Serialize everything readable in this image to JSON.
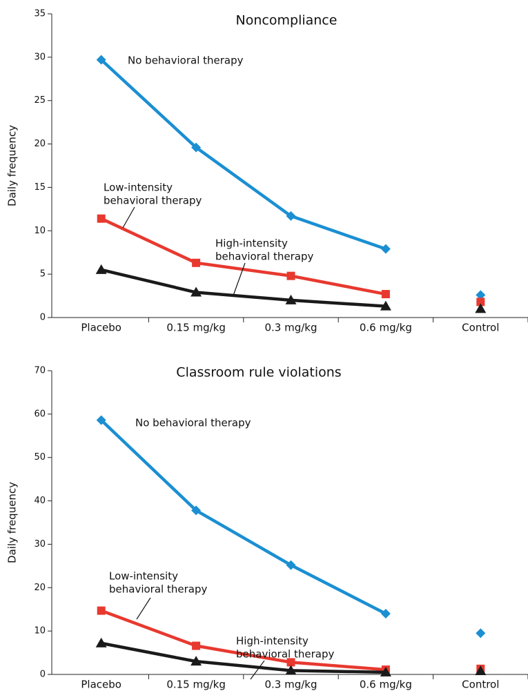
{
  "chart_data": [
    {
      "type": "line",
      "title": "Noncompliance",
      "y_label": "Daily frequency",
      "categories": [
        "Placebo",
        "0.15 mg/kg",
        "0.3 mg/kg",
        "0.6 mg/kg",
        "Control"
      ],
      "unconnected": [
        4
      ],
      "series": [
        {
          "name": "No behavioral therapy",
          "color": "#1b8fd2",
          "marker": "diamond",
          "values": [
            29.7,
            19.6,
            11.7,
            7.9,
            2.6
          ]
        },
        {
          "name": "Low-intensity behavioral therapy",
          "color": "#e8392f",
          "marker": "square",
          "values": [
            11.4,
            6.3,
            4.8,
            2.7,
            1.8
          ]
        },
        {
          "name": "High-intensity behavioral therapy",
          "color": "#1a1a1a",
          "marker": "triangle",
          "values": [
            5.5,
            2.9,
            2.0,
            1.3,
            1.0
          ]
        }
      ],
      "annotations": [
        [
          "No behavioral therapy"
        ],
        [
          "Low-intensity",
          "behavioral therapy"
        ],
        [
          "High-intensity",
          "behavioral therapy"
        ]
      ],
      "ylim": [
        0,
        35
      ],
      "yticks": [
        0,
        5,
        10,
        15,
        20,
        25,
        30,
        35
      ]
    },
    {
      "type": "line",
      "title": "Classroom rule violations",
      "y_label": "Daily frequency",
      "categories": [
        "Placebo",
        "0.15 mg/kg",
        "0.3 mg/kg",
        "0.6 mg/kg",
        "Control"
      ],
      "unconnected": [
        4
      ],
      "series": [
        {
          "name": "No behavioral therapy",
          "color": "#1b8fd2",
          "marker": "diamond",
          "values": [
            58.6,
            37.8,
            25.2,
            14.0,
            9.5
          ]
        },
        {
          "name": "Low-intensity behavioral therapy",
          "color": "#e8392f",
          "marker": "square",
          "values": [
            14.7,
            6.6,
            2.8,
            1.1,
            1.3
          ]
        },
        {
          "name": "High-intensity behavioral therapy",
          "color": "#1a1a1a",
          "marker": "triangle",
          "values": [
            7.2,
            3.0,
            0.9,
            0.5,
            0.8
          ]
        }
      ],
      "annotations": [
        [
          "No behavioral therapy"
        ],
        [
          "Low-intensity",
          "behavioral therapy"
        ],
        [
          "High-intensity",
          "behavioral therapy"
        ]
      ],
      "ylim": [
        0,
        70
      ],
      "yticks": [
        0,
        10,
        20,
        30,
        40,
        50,
        60,
        70
      ]
    }
  ]
}
